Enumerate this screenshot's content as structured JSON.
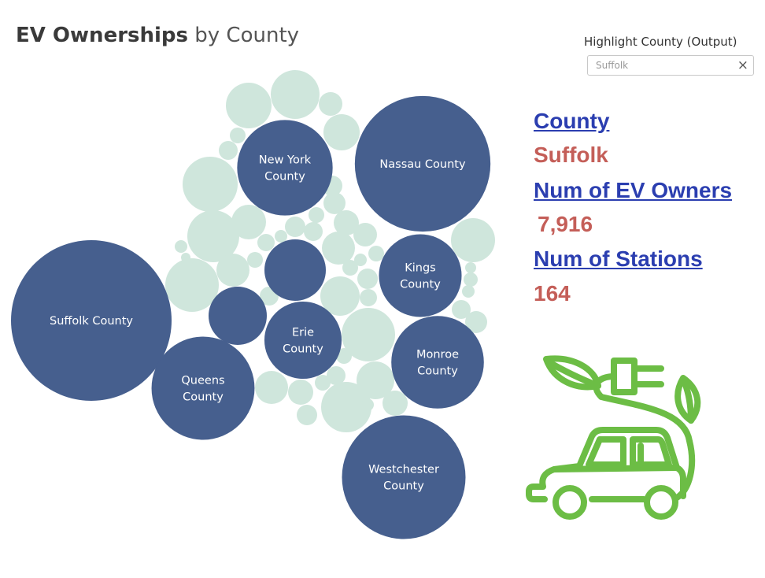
{
  "title": {
    "bold": "EV Ownerships",
    "rest": " by County"
  },
  "filter": {
    "label": "Highlight County (Output)",
    "value": "Suffolk",
    "clear_symbol": "×"
  },
  "details": {
    "county_heading": "County",
    "county_value": "Suffolk",
    "owners_heading": "Num of EV Owners",
    "owners_value": "7,916",
    "stations_heading": "Num of Stations",
    "stations_value": "164"
  },
  "colors": {
    "labeled_bubble": "#465f8e",
    "other_bubble": "#cfe6dc",
    "heading": "#2b3eb0",
    "value": "#c45e58",
    "icon": "#6cbd45"
  },
  "icon": "ev-car-plug-icon",
  "chart_data": {
    "type": "packed-bubble",
    "title": "EV Ownerships by County",
    "size_measure": "Num of EV Owners",
    "highlighted": "Suffolk County",
    "labeled_bubbles": [
      {
        "label": "Suffolk County",
        "value": 7916
      },
      {
        "label": "Nassau County",
        "value": 5650
      },
      {
        "label": "Westchester County",
        "value": 4690
      },
      {
        "label": "Queens County",
        "value": 3260
      },
      {
        "label": "New York County",
        "value": 2800
      },
      {
        "label": "Monroe County",
        "value": 2630
      },
      {
        "label": "Kings County",
        "value": 2100
      },
      {
        "label": "Erie County",
        "value": 1830
      }
    ]
  }
}
